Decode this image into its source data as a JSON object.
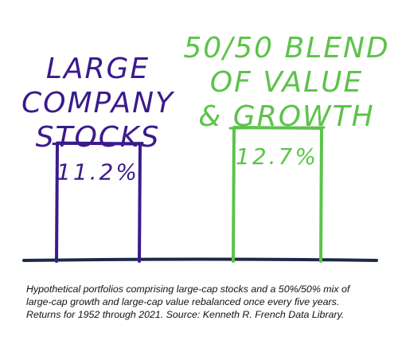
{
  "chart_data": {
    "type": "bar",
    "categories": [
      "LARGE COMPANY STOCKS",
      "50/50 BLEND OF VALUE & GROWTH"
    ],
    "category_lines": [
      [
        "LARGE",
        "COMPANY",
        "STOCKS"
      ],
      [
        "50/50 BLEND",
        "OF VALUE",
        "& GROWTH"
      ]
    ],
    "values": [
      11.2,
      12.7
    ],
    "value_labels": [
      "11.2%",
      "12.7%"
    ],
    "ylim": [
      0,
      12.7
    ],
    "grid": false,
    "legend": "none",
    "colors": [
      "#3b1a8c",
      "#5cc34a"
    ],
    "baseline_color": "#1c2a4a"
  },
  "caption": "Hypothetical portfolios comprising large-cap stocks and a 50%/50% mix of large-cap growth and large-cap value rebalanced once every five years. Returns for 1952 through 2021. Source: Kenneth R. French Data Library."
}
